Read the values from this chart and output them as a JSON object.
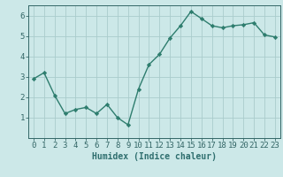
{
  "x": [
    0,
    1,
    2,
    3,
    4,
    5,
    6,
    7,
    8,
    9,
    10,
    11,
    12,
    13,
    14,
    15,
    16,
    17,
    18,
    19,
    20,
    21,
    22,
    23
  ],
  "y": [
    2.9,
    3.2,
    2.1,
    1.2,
    1.4,
    1.5,
    1.2,
    1.65,
    1.0,
    0.65,
    2.4,
    3.6,
    4.1,
    4.9,
    5.5,
    6.2,
    5.85,
    5.5,
    5.4,
    5.5,
    5.55,
    5.65,
    5.05,
    4.95
  ],
  "line_color": "#2e7d6e",
  "marker": "D",
  "marker_size": 2.2,
  "line_width": 1.0,
  "xlabel": "Humidex (Indice chaleur)",
  "xlim": [
    -0.5,
    23.5
  ],
  "ylim": [
    0,
    6.5
  ],
  "yticks": [
    1,
    2,
    3,
    4,
    5,
    6
  ],
  "xticks": [
    0,
    1,
    2,
    3,
    4,
    5,
    6,
    7,
    8,
    9,
    10,
    11,
    12,
    13,
    14,
    15,
    16,
    17,
    18,
    19,
    20,
    21,
    22,
    23
  ],
  "xtick_labels": [
    "0",
    "1",
    "2",
    "3",
    "4",
    "5",
    "6",
    "7",
    "8",
    "9",
    "10",
    "11",
    "12",
    "13",
    "14",
    "15",
    "16",
    "17",
    "18",
    "19",
    "20",
    "21",
    "22",
    "23"
  ],
  "background_color": "#cce8e8",
  "grid_color": "#aacccc",
  "line_spine_color": "#336666",
  "label_color": "#2e6e6e",
  "font_size": 6.5,
  "xlabel_font_size": 7.0
}
